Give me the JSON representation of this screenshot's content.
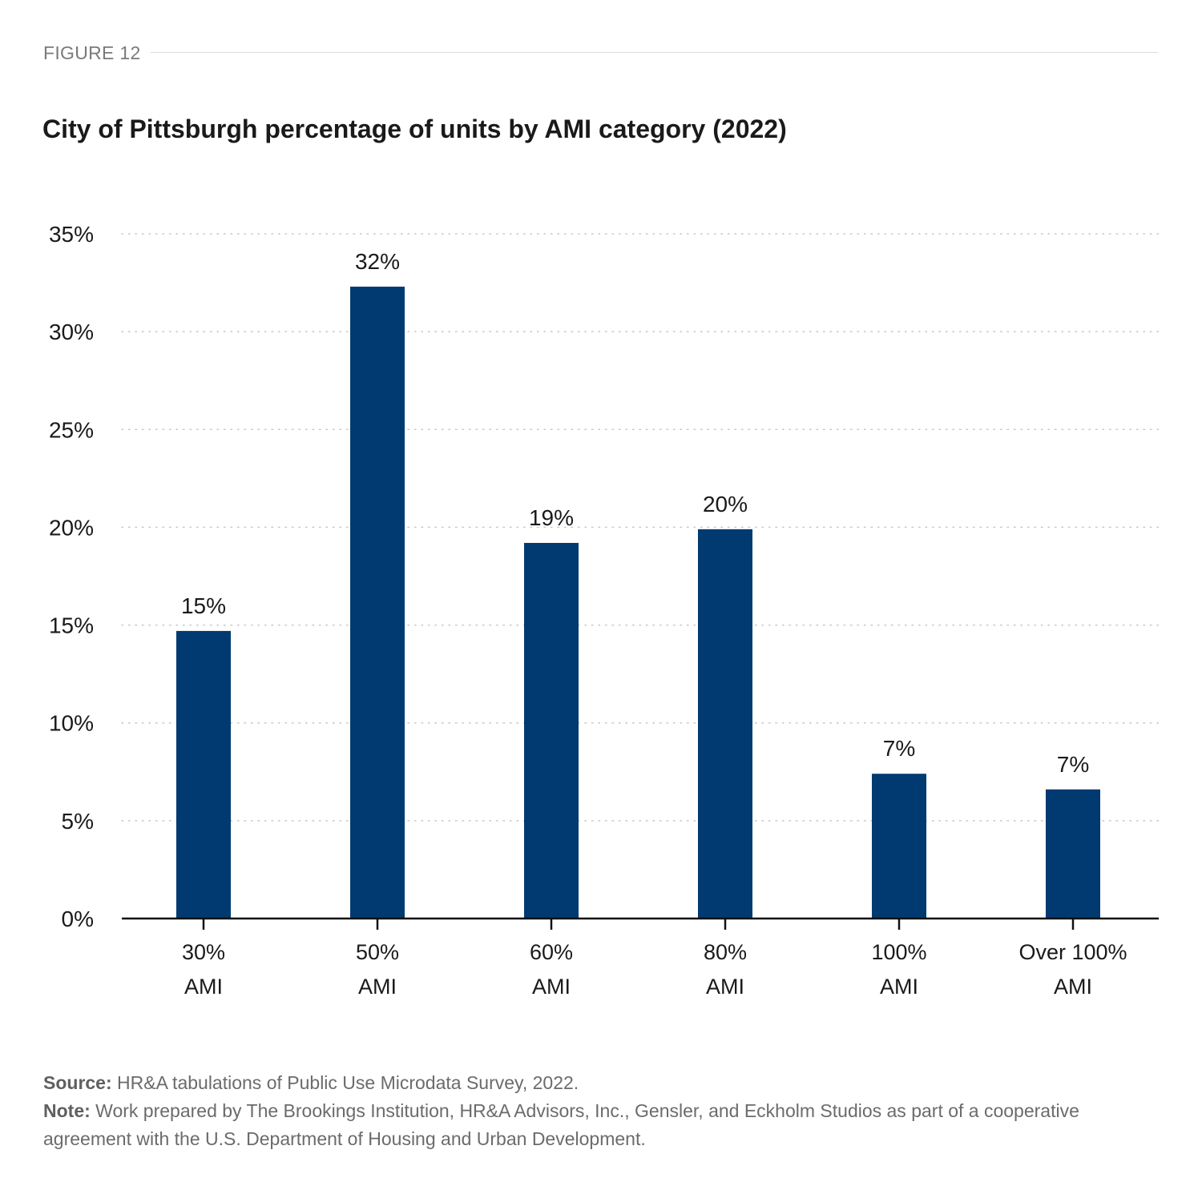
{
  "figure_label": "FIGURE 12",
  "title": "City of Pittsburgh percentage of units by AMI category (2022)",
  "colors": {
    "bar": "#003a70",
    "axis": "#111111",
    "grid": "#c8c8c8",
    "text": "#1a1a1a"
  },
  "chart_data": {
    "type": "bar",
    "title": "City of Pittsburgh percentage of units by AMI category (2022)",
    "xlabel": "",
    "ylabel": "",
    "categories": [
      [
        "30%",
        "AMI"
      ],
      [
        "50%",
        "AMI"
      ],
      [
        "60%",
        "AMI"
      ],
      [
        "80%",
        "AMI"
      ],
      [
        "100%",
        "AMI"
      ],
      [
        "Over 100%",
        "AMI"
      ]
    ],
    "values": [
      14.7,
      32.3,
      19.2,
      19.9,
      7.4,
      6.6
    ],
    "data_labels": [
      "15%",
      "32%",
      "19%",
      "20%",
      "7%",
      "7%"
    ],
    "ylim": [
      0,
      35
    ],
    "yticks": [
      0,
      5,
      10,
      15,
      20,
      25,
      30,
      35
    ],
    "ytick_labels": [
      "0%",
      "5%",
      "10%",
      "15%",
      "20%",
      "25%",
      "30%",
      "35%"
    ],
    "grid": true,
    "legend": "none"
  },
  "footer": {
    "source_label": "Source:",
    "source_text": " HR&A tabulations of Public Use Microdata Survey, 2022.",
    "note_label": "Note:",
    "note_text": " Work prepared by The Brookings Institution, HR&A Advisors, Inc., Gensler, and Eckholm Studios as part of a cooperative agreement with the U.S. Department of Housing and Urban Development."
  }
}
